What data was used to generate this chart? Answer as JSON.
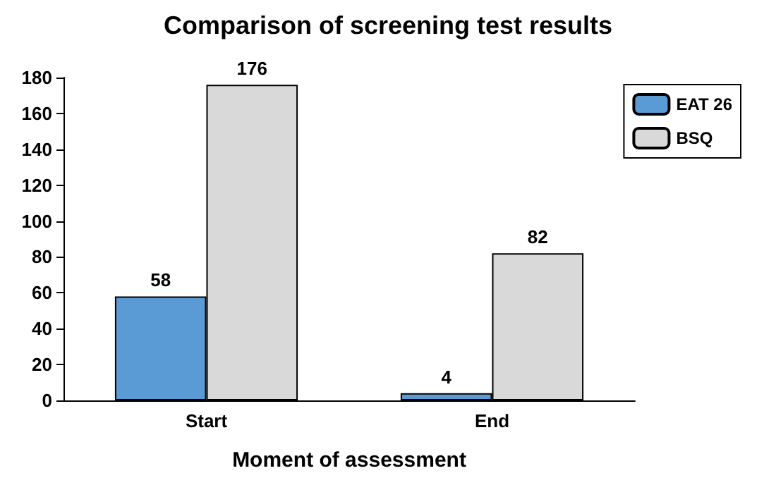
{
  "chart_data": {
    "type": "bar",
    "title": "Comparison of screening test results",
    "xlabel": "Moment of assessment",
    "categories": [
      "Start",
      "End"
    ],
    "series": [
      {
        "name": "EAT 26",
        "color": "#5b9bd5",
        "values": [
          58,
          4
        ]
      },
      {
        "name": "BSQ",
        "color": "#d9d9d9",
        "values": [
          176,
          82
        ]
      }
    ],
    "ylim": [
      0,
      180
    ],
    "yticks": [
      0,
      20,
      40,
      60,
      80,
      100,
      120,
      140,
      160,
      180
    ],
    "grid": false,
    "legend": "top right",
    "data_labels": true
  }
}
